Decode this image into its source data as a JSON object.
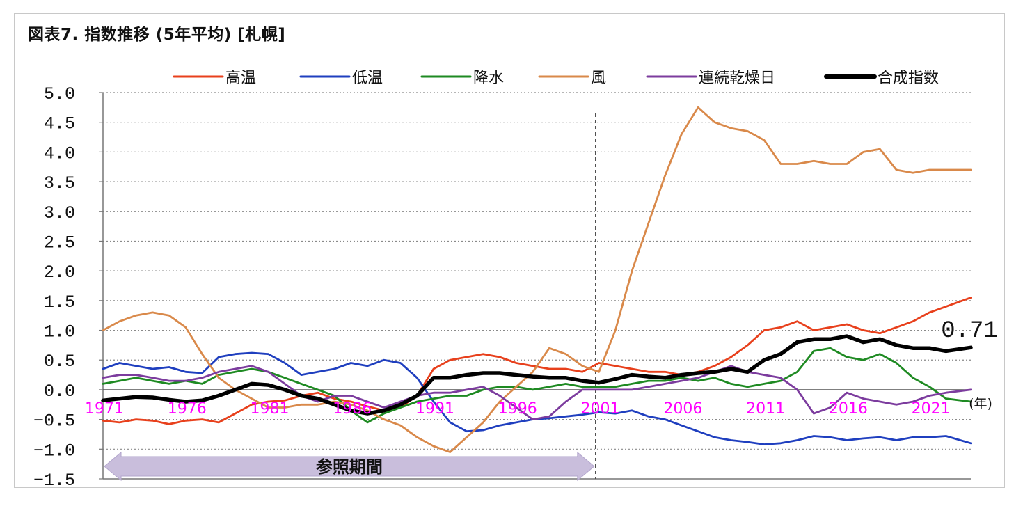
{
  "chart_data": {
    "type": "line",
    "title": "図表7. 指数推移 (5年平均) [札幌]",
    "x_unit": "(年)",
    "x_ticks": [
      "1971",
      "1976",
      "1981",
      "1986",
      "1991",
      "1996",
      "2001",
      "2006",
      "2011",
      "2016",
      "2021"
    ],
    "y_ticks": [
      "5.0",
      "4.5",
      "4.0",
      "3.5",
      "3.0",
      "2.5",
      "2.0",
      "1.5",
      "1.0",
      "0.5",
      "0.0",
      "−0.5",
      "−1.0",
      "−1.5"
    ],
    "ylim": [
      -1.5,
      5.0
    ],
    "xlim": [
      1971,
      2023.5
    ],
    "grid": true,
    "legend_position": "top",
    "annotation_value": "0.71",
    "reference_period": {
      "label": "参照期間",
      "start": 1971,
      "end": 2000.8
    },
    "reference_divider_x": 2000.8,
    "series": [
      {
        "name": "高温",
        "color": "#e8401c",
        "x": [
          1971,
          1972,
          1973,
          1974,
          1975,
          1976,
          1977,
          1978,
          1979,
          1980,
          1981,
          1982,
          1983,
          1984,
          1985,
          1986,
          1987,
          1988,
          1989,
          1990,
          1991,
          1992,
          1993,
          1994,
          1995,
          1996,
          1997,
          1998,
          1999,
          2000,
          2001,
          2002,
          2003,
          2004,
          2005,
          2006,
          2007,
          2008,
          2009,
          2010,
          2011,
          2012,
          2013,
          2014,
          2015,
          2016,
          2017,
          2018,
          2019,
          2020,
          2021,
          2022,
          2023.5
        ],
        "values": [
          -0.52,
          -0.55,
          -0.5,
          -0.52,
          -0.58,
          -0.52,
          -0.5,
          -0.55,
          -0.4,
          -0.25,
          -0.2,
          -0.18,
          -0.1,
          -0.05,
          -0.15,
          -0.2,
          -0.28,
          -0.35,
          -0.3,
          -0.1,
          0.35,
          0.5,
          0.55,
          0.6,
          0.55,
          0.45,
          0.4,
          0.35,
          0.35,
          0.3,
          0.45,
          0.4,
          0.35,
          0.3,
          0.3,
          0.25,
          0.3,
          0.4,
          0.55,
          0.75,
          1.0,
          1.05,
          1.15,
          1.0,
          1.05,
          1.1,
          1.0,
          0.95,
          1.05,
          1.15,
          1.3,
          1.4,
          1.55
        ]
      },
      {
        "name": "低温",
        "color": "#1f3fbf",
        "x": [
          1971,
          1972,
          1973,
          1974,
          1975,
          1976,
          1977,
          1978,
          1979,
          1980,
          1981,
          1982,
          1983,
          1984,
          1985,
          1986,
          1987,
          1988,
          1989,
          1990,
          1991,
          1992,
          1993,
          1994,
          1995,
          1996,
          1997,
          1998,
          1999,
          2000,
          2001,
          2002,
          2003,
          2004,
          2005,
          2006,
          2007,
          2008,
          2009,
          2010,
          2011,
          2012,
          2013,
          2014,
          2015,
          2016,
          2017,
          2018,
          2019,
          2020,
          2021,
          2022,
          2023.5
        ],
        "values": [
          0.35,
          0.45,
          0.4,
          0.35,
          0.38,
          0.3,
          0.28,
          0.55,
          0.6,
          0.62,
          0.6,
          0.45,
          0.25,
          0.3,
          0.35,
          0.45,
          0.4,
          0.5,
          0.45,
          0.2,
          -0.2,
          -0.55,
          -0.7,
          -0.68,
          -0.6,
          -0.55,
          -0.5,
          -0.48,
          -0.45,
          -0.42,
          -0.38,
          -0.4,
          -0.35,
          -0.45,
          -0.5,
          -0.6,
          -0.7,
          -0.8,
          -0.85,
          -0.88,
          -0.92,
          -0.9,
          -0.85,
          -0.78,
          -0.8,
          -0.85,
          -0.82,
          -0.8,
          -0.85,
          -0.8,
          -0.8,
          -0.78,
          -0.9
        ]
      },
      {
        "name": "降水",
        "color": "#1e8a22",
        "x": [
          1971,
          1972,
          1973,
          1974,
          1975,
          1976,
          1977,
          1978,
          1979,
          1980,
          1981,
          1982,
          1983,
          1984,
          1985,
          1986,
          1987,
          1988,
          1989,
          1990,
          1991,
          1992,
          1993,
          1994,
          1995,
          1996,
          1997,
          1998,
          1999,
          2000,
          2001,
          2002,
          2003,
          2004,
          2005,
          2006,
          2007,
          2008,
          2009,
          2010,
          2011,
          2012,
          2013,
          2014,
          2015,
          2016,
          2017,
          2018,
          2019,
          2020,
          2021,
          2022,
          2023.5
        ],
        "values": [
          0.1,
          0.15,
          0.2,
          0.15,
          0.1,
          0.15,
          0.1,
          0.25,
          0.3,
          0.35,
          0.3,
          0.2,
          0.1,
          0.0,
          -0.1,
          -0.35,
          -0.55,
          -0.4,
          -0.3,
          -0.2,
          -0.15,
          -0.1,
          -0.1,
          0.0,
          0.05,
          0.05,
          0.0,
          0.05,
          0.1,
          0.05,
          0.05,
          0.05,
          0.1,
          0.15,
          0.15,
          0.2,
          0.15,
          0.2,
          0.1,
          0.05,
          0.1,
          0.15,
          0.3,
          0.65,
          0.7,
          0.55,
          0.5,
          0.6,
          0.45,
          0.2,
          0.05,
          -0.15,
          -0.2
        ]
      },
      {
        "name": "風",
        "color": "#d9894a",
        "x": [
          1971,
          1972,
          1973,
          1974,
          1975,
          1976,
          1977,
          1978,
          1979,
          1980,
          1981,
          1982,
          1983,
          1984,
          1985,
          1986,
          1987,
          1988,
          1989,
          1990,
          1991,
          1992,
          1993,
          1994,
          1995,
          1996,
          1997,
          1998,
          1999,
          2000,
          2001,
          2002,
          2003,
          2004,
          2005,
          2006,
          2007,
          2008,
          2009,
          2010,
          2011,
          2012,
          2013,
          2014,
          2015,
          2016,
          2017,
          2018,
          2019,
          2020,
          2021,
          2022,
          2023.5
        ],
        "values": [
          1.0,
          1.15,
          1.25,
          1.3,
          1.25,
          1.05,
          0.6,
          0.2,
          0.0,
          -0.15,
          -0.3,
          -0.3,
          -0.25,
          -0.25,
          -0.2,
          -0.25,
          -0.35,
          -0.5,
          -0.6,
          -0.8,
          -0.95,
          -1.05,
          -0.8,
          -0.55,
          -0.2,
          0.05,
          0.3,
          0.7,
          0.6,
          0.4,
          0.3,
          1.0,
          2.0,
          2.8,
          3.6,
          4.3,
          4.75,
          4.5,
          4.4,
          4.35,
          4.2,
          3.8,
          3.8,
          3.85,
          3.8,
          3.8,
          4.0,
          4.05,
          3.7,
          3.65,
          3.7,
          3.7,
          3.7
        ]
      },
      {
        "name": "連続乾燥日",
        "color": "#7c3c9e",
        "x": [
          1971,
          1972,
          1973,
          1974,
          1975,
          1976,
          1977,
          1978,
          1979,
          1980,
          1981,
          1982,
          1983,
          1984,
          1985,
          1986,
          1987,
          1988,
          1989,
          1990,
          1991,
          1992,
          1993,
          1994,
          1995,
          1996,
          1997,
          1998,
          1999,
          2000,
          2001,
          2002,
          2003,
          2004,
          2005,
          2006,
          2007,
          2008,
          2009,
          2010,
          2011,
          2012,
          2013,
          2014,
          2015,
          2016,
          2017,
          2018,
          2019,
          2020,
          2021,
          2022,
          2023.5
        ],
        "values": [
          0.2,
          0.25,
          0.25,
          0.2,
          0.15,
          0.15,
          0.2,
          0.3,
          0.35,
          0.4,
          0.3,
          0.1,
          -0.1,
          -0.2,
          -0.1,
          -0.1,
          -0.2,
          -0.3,
          -0.2,
          -0.1,
          -0.05,
          -0.05,
          0.0,
          0.05,
          -0.1,
          -0.3,
          -0.5,
          -0.45,
          -0.2,
          0.0,
          0.0,
          0.0,
          0.0,
          0.05,
          0.1,
          0.15,
          0.2,
          0.3,
          0.4,
          0.3,
          0.25,
          0.2,
          0.0,
          -0.4,
          -0.3,
          -0.05,
          -0.15,
          -0.2,
          -0.25,
          -0.2,
          -0.1,
          -0.05,
          0.0
        ]
      },
      {
        "name": "合成指数",
        "color": "#000000",
        "x": [
          1971,
          1972,
          1973,
          1974,
          1975,
          1976,
          1977,
          1978,
          1979,
          1980,
          1981,
          1982,
          1983,
          1984,
          1985,
          1986,
          1987,
          1988,
          1989,
          1990,
          1991,
          1992,
          1993,
          1994,
          1995,
          1996,
          1997,
          1998,
          1999,
          2000,
          2001,
          2002,
          2003,
          2004,
          2005,
          2006,
          2007,
          2008,
          2009,
          2010,
          2011,
          2012,
          2013,
          2014,
          2015,
          2016,
          2017,
          2018,
          2019,
          2020,
          2021,
          2022,
          2023.5
        ],
        "values": [
          -0.18,
          -0.15,
          -0.12,
          -0.13,
          -0.17,
          -0.2,
          -0.18,
          -0.1,
          0.0,
          0.1,
          0.08,
          0.0,
          -0.1,
          -0.15,
          -0.25,
          -0.35,
          -0.4,
          -0.35,
          -0.25,
          -0.1,
          0.2,
          0.2,
          0.25,
          0.28,
          0.28,
          0.25,
          0.22,
          0.2,
          0.2,
          0.15,
          0.12,
          0.18,
          0.25,
          0.22,
          0.2,
          0.25,
          0.28,
          0.3,
          0.35,
          0.3,
          0.5,
          0.6,
          0.8,
          0.85,
          0.85,
          0.9,
          0.8,
          0.85,
          0.75,
          0.7,
          0.7,
          0.65,
          0.71
        ]
      }
    ]
  }
}
